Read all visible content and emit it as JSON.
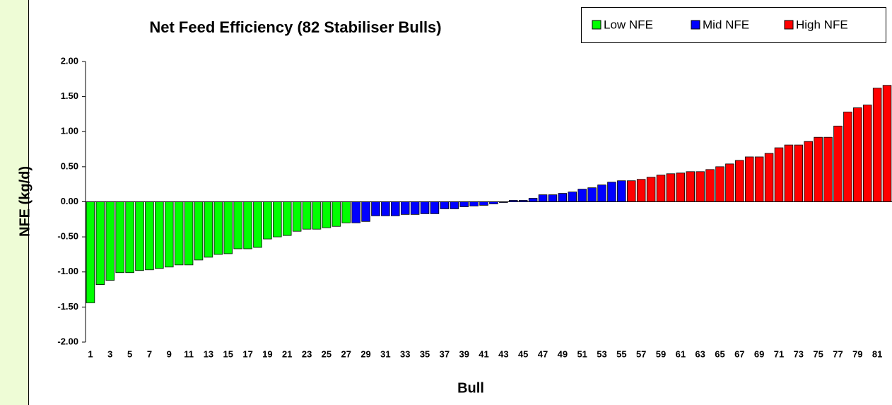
{
  "chart_data": {
    "type": "bar",
    "title": "Net Feed Efficiency (82 Stabiliser Bulls)",
    "x_label": "Bull",
    "y_label": "NFE (kg/d)",
    "categories": [
      "1",
      null,
      "3",
      null,
      "5",
      null,
      "7",
      null,
      "9",
      null,
      "11",
      null,
      "13",
      null,
      "15",
      null,
      "17",
      null,
      "19",
      null,
      "21",
      null,
      "23",
      null,
      "25",
      null,
      "27",
      null,
      "29",
      null,
      "31",
      null,
      "33",
      null,
      "35",
      null,
      "37",
      null,
      "39",
      null,
      "41",
      null,
      "43",
      null,
      "45",
      null,
      "47",
      null,
      "49",
      null,
      "51",
      null,
      "53",
      null,
      "55",
      null,
      "57",
      null,
      "59",
      null,
      "61",
      null,
      "63",
      null,
      "65",
      null,
      "67",
      null,
      "69",
      null,
      "71",
      null,
      "73",
      null,
      "75",
      null,
      "77",
      null,
      "79",
      null,
      "81",
      null
    ],
    "series": [
      {
        "name": "Low NFE",
        "color": "#00ff00",
        "values": [
          -1.44,
          -1.18,
          -1.12,
          -1.01,
          -1.01,
          -0.98,
          -0.97,
          -0.95,
          -0.93,
          -0.9,
          -0.9,
          -0.83,
          -0.79,
          -0.75,
          -0.74,
          -0.67,
          -0.67,
          -0.65,
          -0.53,
          -0.5,
          -0.48,
          -0.42,
          -0.39,
          -0.39,
          -0.37,
          -0.35,
          -0.3,
          null,
          null,
          null,
          null,
          null,
          null,
          null,
          null,
          null,
          null,
          null,
          null,
          null,
          null,
          null,
          null,
          null,
          null,
          null,
          null,
          null,
          null,
          null,
          null,
          null,
          null,
          null,
          null,
          null,
          null,
          null,
          null,
          null,
          null,
          null,
          null,
          null,
          null,
          null,
          null,
          null,
          null,
          null,
          null,
          null,
          null,
          null,
          null,
          null,
          null,
          null,
          null,
          null,
          null,
          null
        ]
      },
      {
        "name": "Mid NFE",
        "color": "#0000ff",
        "values": [
          null,
          null,
          null,
          null,
          null,
          null,
          null,
          null,
          null,
          null,
          null,
          null,
          null,
          null,
          null,
          null,
          null,
          null,
          null,
          null,
          null,
          null,
          null,
          null,
          null,
          null,
          null,
          -0.3,
          -0.28,
          -0.2,
          -0.2,
          -0.2,
          -0.18,
          -0.18,
          -0.17,
          -0.17,
          -0.1,
          -0.1,
          -0.07,
          -0.06,
          -0.05,
          -0.03,
          -0.01,
          0.02,
          0.02,
          0.05,
          0.1,
          0.1,
          0.12,
          0.14,
          0.18,
          0.2,
          0.24,
          0.28,
          0.3,
          null,
          null,
          null,
          null,
          null,
          null,
          null,
          null,
          null,
          null,
          null,
          null,
          null,
          null,
          null,
          null,
          null,
          null,
          null,
          null,
          null,
          null,
          null,
          null,
          null,
          null,
          null
        ]
      },
      {
        "name": "High NFE",
        "color": "#ff0000",
        "values": [
          null,
          null,
          null,
          null,
          null,
          null,
          null,
          null,
          null,
          null,
          null,
          null,
          null,
          null,
          null,
          null,
          null,
          null,
          null,
          null,
          null,
          null,
          null,
          null,
          null,
          null,
          null,
          null,
          null,
          null,
          null,
          null,
          null,
          null,
          null,
          null,
          null,
          null,
          null,
          null,
          null,
          null,
          null,
          null,
          null,
          null,
          null,
          null,
          null,
          null,
          null,
          null,
          null,
          null,
          null,
          0.3,
          0.32,
          0.35,
          0.38,
          0.4,
          0.41,
          0.43,
          0.43,
          0.46,
          0.5,
          0.54,
          0.59,
          0.64,
          0.64,
          0.69,
          0.77,
          0.81,
          0.81,
          0.86,
          0.92,
          0.92,
          1.08,
          1.28,
          1.34,
          1.38,
          1.62,
          1.66
        ]
      }
    ],
    "ylim": [
      -2,
      2
    ],
    "yticks": [
      {
        "value": -2,
        "label": "-2.00"
      },
      {
        "value": -1.5,
        "label": "-1.50"
      },
      {
        "value": -1,
        "label": "-1.00"
      },
      {
        "value": -0.5,
        "label": "-0.50"
      },
      {
        "value": 0,
        "label": "0.00"
      },
      {
        "value": 0.5,
        "label": "0.50"
      },
      {
        "value": 1,
        "label": "1.00"
      },
      {
        "value": 1.5,
        "label": "1.50"
      },
      {
        "value": 2,
        "label": "2.00"
      }
    ],
    "legend": "top-right"
  }
}
